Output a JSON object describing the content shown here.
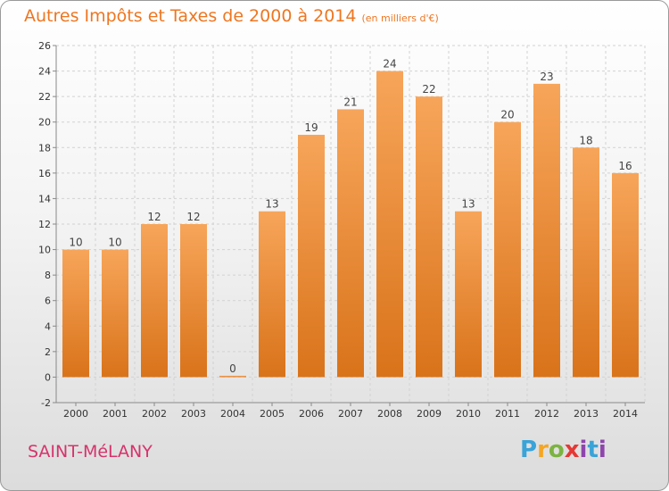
{
  "header": {
    "title": "Autres Impôts et Taxes de 2000 à 2014",
    "subtitle": "(en milliers d'€)"
  },
  "footer": {
    "place": "SAINT-MéLANY",
    "brand": "Proxiti"
  },
  "colors": {
    "bar_top": "#f7a55a",
    "bar_bottom": "#d9731a",
    "title": "#ee7621",
    "place": "#d6336c"
  },
  "chart_data": {
    "type": "bar",
    "title": "Autres Impôts et Taxes de 2000 à 2014",
    "subtitle": "(en milliers d'€)",
    "categories": [
      "2000",
      "2001",
      "2002",
      "2003",
      "2004",
      "2005",
      "2006",
      "2007",
      "2008",
      "2009",
      "2010",
      "2011",
      "2012",
      "2013",
      "2014"
    ],
    "values": [
      10,
      10,
      12,
      12,
      0,
      13,
      19,
      21,
      24,
      22,
      13,
      20,
      23,
      18,
      16
    ],
    "ylim": [
      -2,
      26
    ],
    "yticks": [
      -2,
      0,
      2,
      4,
      6,
      8,
      10,
      12,
      14,
      16,
      18,
      20,
      22,
      24,
      26
    ],
    "grid": true,
    "data_labels": true
  }
}
